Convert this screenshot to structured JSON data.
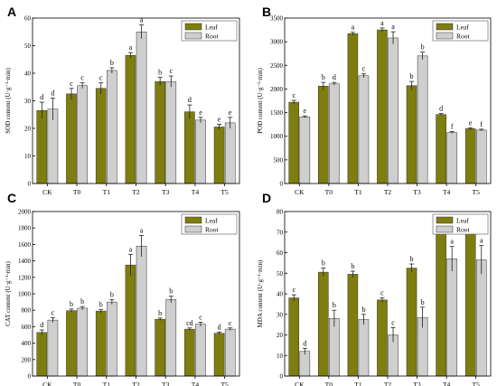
{
  "colors": {
    "leaf": "#7d7d10",
    "root": "#cfcfcf",
    "axis": "#000000"
  },
  "chart_data": [
    {
      "panel": "A",
      "type": "bar",
      "categories": [
        "CK",
        "T0",
        "T1",
        "T2",
        "T3",
        "T4",
        "T5"
      ],
      "ylabel": "SOD content (U·g⁻¹·min)",
      "ylim": [
        0,
        60
      ],
      "yticks": [
        0,
        10,
        20,
        30,
        40,
        50,
        60
      ],
      "grid": false,
      "legend": "top-right",
      "series": [
        {
          "name": "Leaf",
          "values": [
            26.5,
            32.5,
            34.5,
            46.5,
            37,
            26,
            20.5
          ],
          "errors": [
            3,
            2,
            2,
            1,
            1.5,
            2.5,
            1
          ],
          "letters": [
            "d",
            "c",
            "c",
            "a",
            "b",
            "d",
            "e"
          ]
        },
        {
          "name": "Root",
          "values": [
            27,
            35.5,
            41,
            55,
            37,
            23,
            22
          ],
          "errors": [
            4,
            1,
            1,
            2.5,
            2,
            1,
            2
          ],
          "letters": [
            "d",
            "c",
            "b",
            "a",
            "c",
            "e",
            "e"
          ]
        }
      ]
    },
    {
      "panel": "B",
      "type": "bar",
      "categories": [
        "CK",
        "T0",
        "T1",
        "T2",
        "T3",
        "T4",
        "T5"
      ],
      "ylabel": "POD content (U·g⁻¹·min)",
      "ylim": [
        0,
        3500
      ],
      "yticks": [
        0,
        500,
        1000,
        1500,
        2000,
        2500,
        3000,
        3500
      ],
      "grid": false,
      "legend": "top-right",
      "series": [
        {
          "name": "Leaf",
          "values": [
            1720,
            2060,
            3170,
            3250,
            2070,
            1460,
            1160
          ],
          "errors": [
            40,
            80,
            30,
            40,
            90,
            20,
            20
          ],
          "letters": [
            "c",
            "b",
            "a",
            "a",
            "b",
            "d",
            "e"
          ]
        },
        {
          "name": "Root",
          "values": [
            1410,
            2110,
            2280,
            3080,
            2700,
            1080,
            1130
          ],
          "errors": [
            20,
            30,
            40,
            130,
            80,
            20,
            20
          ],
          "letters": [
            "e",
            "d",
            "c",
            "a",
            "b",
            "f",
            "f"
          ]
        }
      ]
    },
    {
      "panel": "C",
      "type": "bar",
      "categories": [
        "CK",
        "T0",
        "T1",
        "T2",
        "T3",
        "T4",
        "T5"
      ],
      "ylabel": "CAT content (U·g⁻¹·min)",
      "ylim": [
        0,
        2000
      ],
      "yticks": [
        0,
        200,
        400,
        600,
        800,
        1000,
        1200,
        1400,
        1600,
        1800,
        2000
      ],
      "grid": false,
      "legend": "top-right",
      "series": [
        {
          "name": "Leaf",
          "values": [
            530,
            795,
            790,
            1350,
            690,
            570,
            520
          ],
          "errors": [
            30,
            20,
            20,
            130,
            15,
            15,
            15
          ],
          "letters": [
            "d",
            "b",
            "b",
            "a",
            "b",
            "cd",
            "d"
          ]
        },
        {
          "name": "Root",
          "values": [
            680,
            825,
            900,
            1580,
            930,
            630,
            570
          ],
          "errors": [
            30,
            20,
            30,
            130,
            40,
            25,
            15
          ],
          "letters": [
            "c",
            "b",
            "b",
            "a",
            "b",
            "c",
            "c"
          ]
        }
      ]
    },
    {
      "panel": "D",
      "type": "bar",
      "categories": [
        "CK",
        "T0",
        "T1",
        "T2",
        "T3",
        "T4",
        "T5"
      ],
      "ylabel": "MDA content (U·g⁻¹·min)",
      "ylim": [
        0,
        80
      ],
      "yticks": [
        0,
        10,
        20,
        30,
        40,
        50,
        60,
        70,
        80
      ],
      "grid": false,
      "legend": "top-right",
      "series": [
        {
          "name": "Leaf",
          "values": [
            38,
            50.5,
            49.5,
            37,
            52.5,
            72,
            71.5
          ],
          "errors": [
            1.5,
            2,
            1.5,
            1,
            2,
            3,
            2.5
          ],
          "letters": [
            "c",
            "b",
            "b",
            "c",
            "b",
            "a",
            "a"
          ]
        },
        {
          "name": "Root",
          "values": [
            12,
            28,
            27.5,
            20,
            28.5,
            57,
            56.5
          ],
          "errors": [
            1.5,
            4,
            2.5,
            3.5,
            5,
            6,
            7
          ],
          "letters": [
            "d",
            "b",
            "b",
            "c",
            "b",
            "a",
            "a"
          ]
        }
      ]
    }
  ]
}
